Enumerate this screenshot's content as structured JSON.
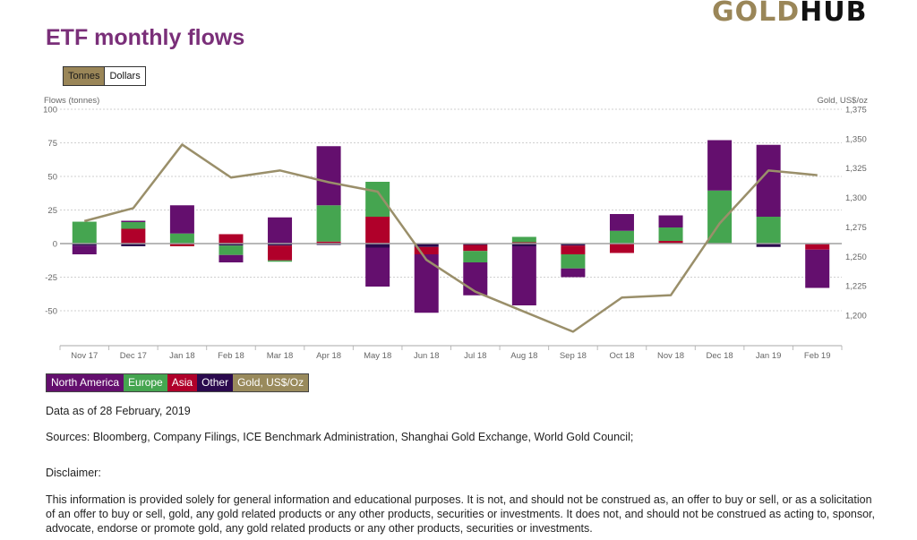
{
  "logo": {
    "part1": "GOLD",
    "part2": "HUB"
  },
  "header": {
    "title": "ETF monthly flows"
  },
  "toggle": {
    "tonnes": "Tonnes",
    "dollars": "Dollars",
    "selected": "Tonnes"
  },
  "colors": {
    "north_america": "#640f6e",
    "europe": "#45a550",
    "asia": "#b0002a",
    "other": "#2b0a4e",
    "gold_line": "#9a8f6a",
    "legend_gold_bg": "#998a5c"
  },
  "legend": {
    "north_america": "North America",
    "europe": "Europe",
    "asia": "Asia",
    "other": "Other",
    "gold": "Gold, US$/Oz"
  },
  "footer": {
    "data_as_of": "Data as of 28 February, 2019",
    "sources": "Sources: Bloomberg, Company Filings, ICE Benchmark Administration, Shanghai Gold Exchange, World Gold Council;",
    "disclaimer_title": "Disclaimer:",
    "disclaimer_text": "This information is provided solely for general information and educational purposes. It is not, and should not be construed as, an offer to buy or sell, or as a solicitation of an offer to buy or sell, gold, any gold related products or any other products, securities or investments. It does not, and should not be construed as acting to, sponsor, advocate, endorse or promote gold, any gold related products or any other products, securities or investments."
  },
  "chart_data": {
    "type": "bar",
    "stacked": true,
    "title": "ETF monthly flows",
    "ylabel": "Flows (tonnes)",
    "y2label": "Gold, US$/oz",
    "ylim": [
      -75,
      100
    ],
    "yticks": [
      100,
      75,
      50,
      25,
      0,
      -25,
      -50
    ],
    "ytick_labels": [
      "100",
      "75",
      "50",
      "25",
      "0",
      "-25",
      "-50"
    ],
    "y2lim": [
      1175,
      1375
    ],
    "y2ticks": [
      1375,
      1350,
      1325,
      1300,
      1275,
      1250,
      1225,
      1200
    ],
    "y2tick_labels": [
      "1,375",
      "1,350",
      "1,325",
      "1,300",
      "1,275",
      "1,250",
      "1,225",
      "1,200"
    ],
    "grid": true,
    "legend_position": "bottom-left",
    "categories": [
      "Nov 17",
      "Dec 17",
      "Jan 18",
      "Feb 18",
      "Mar 18",
      "Apr 18",
      "May 18",
      "Jun 18",
      "Jul 18",
      "Aug 18",
      "Sep 18",
      "Oct 18",
      "Nov 18",
      "Dec 18",
      "Jan 19",
      "Feb 19"
    ],
    "series": [
      {
        "name": "North America",
        "key": "north_america",
        "values": [
          -6.5,
          1,
          21,
          -5.5,
          19.5,
          44,
          -29,
          -43.5,
          -24.5,
          -44,
          -6.5,
          12.5,
          9,
          37.5,
          53.5,
          -28.5
        ]
      },
      {
        "name": "Europe",
        "key": "europe",
        "values": [
          16.3,
          5,
          7.5,
          -7,
          -1,
          27,
          26,
          0,
          -8.5,
          4,
          -10.5,
          9.5,
          10,
          39.5,
          20,
          0
        ]
      },
      {
        "name": "Asia",
        "key": "asia",
        "values": [
          0,
          11,
          -2,
          7,
          -11,
          1.5,
          20,
          -5.5,
          -4.5,
          1,
          -6.5,
          -7,
          2,
          0,
          0,
          -4
        ]
      },
      {
        "name": "Other",
        "key": "other",
        "values": [
          -1.5,
          -2,
          0,
          -1.5,
          -1.5,
          -1,
          -3,
          -2.5,
          -1,
          -2,
          -1.5,
          0,
          0,
          0,
          -2.5,
          -0.5
        ]
      }
    ],
    "line_series": {
      "name": "Gold, US$/Oz",
      "axis": "right",
      "values": [
        1280,
        1291,
        1345,
        1317,
        1323,
        1313,
        1305,
        1247,
        1220,
        1203,
        1186,
        1215,
        1217,
        1278,
        1323,
        1319
      ]
    }
  }
}
